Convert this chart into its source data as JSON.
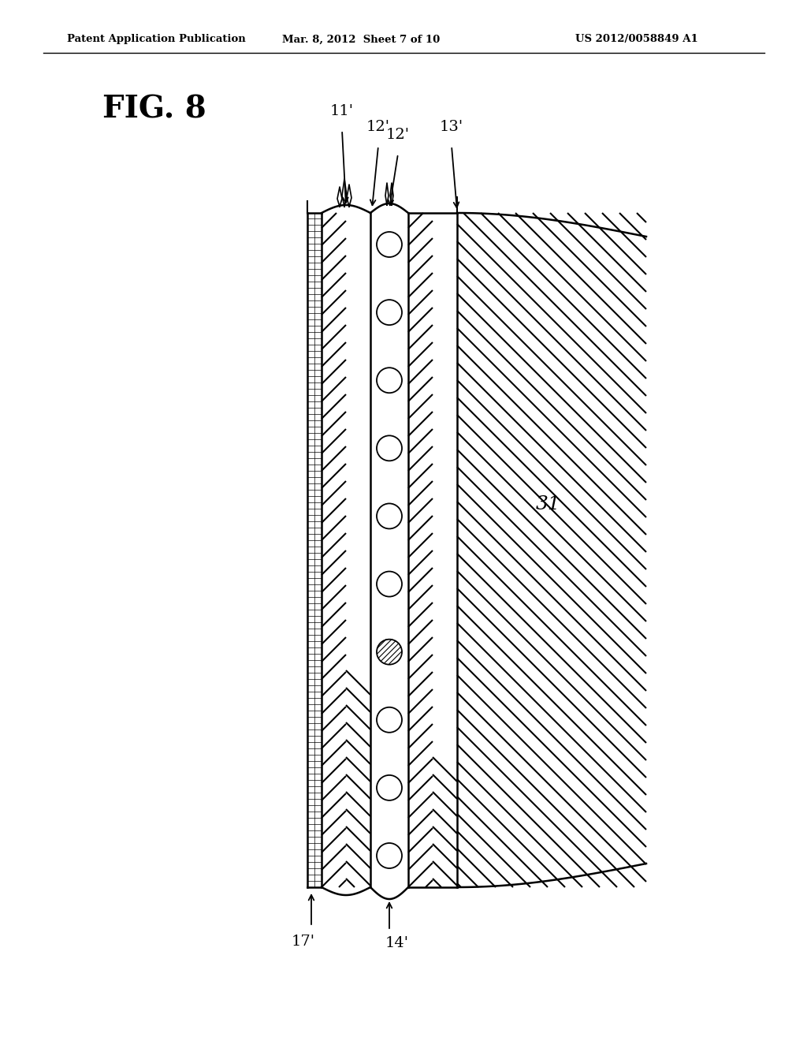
{
  "header_left": "Patent Application Publication",
  "header_center": "Mar. 8, 2012  Sheet 7 of 10",
  "header_right": "US 2012/0058849 A1",
  "fig_label": "FIG. 8",
  "label_11": "11'",
  "label_12a": "12'",
  "label_12b": "12'",
  "label_13": "13'",
  "label_17": "17'",
  "label_14": "14'",
  "label_31": "31",
  "n_cords": 10,
  "cord_hatch": "////",
  "left_hatch": "////",
  "right_hatch": "////",
  "outer_hatch": "////",
  "bg": "#ffffff"
}
